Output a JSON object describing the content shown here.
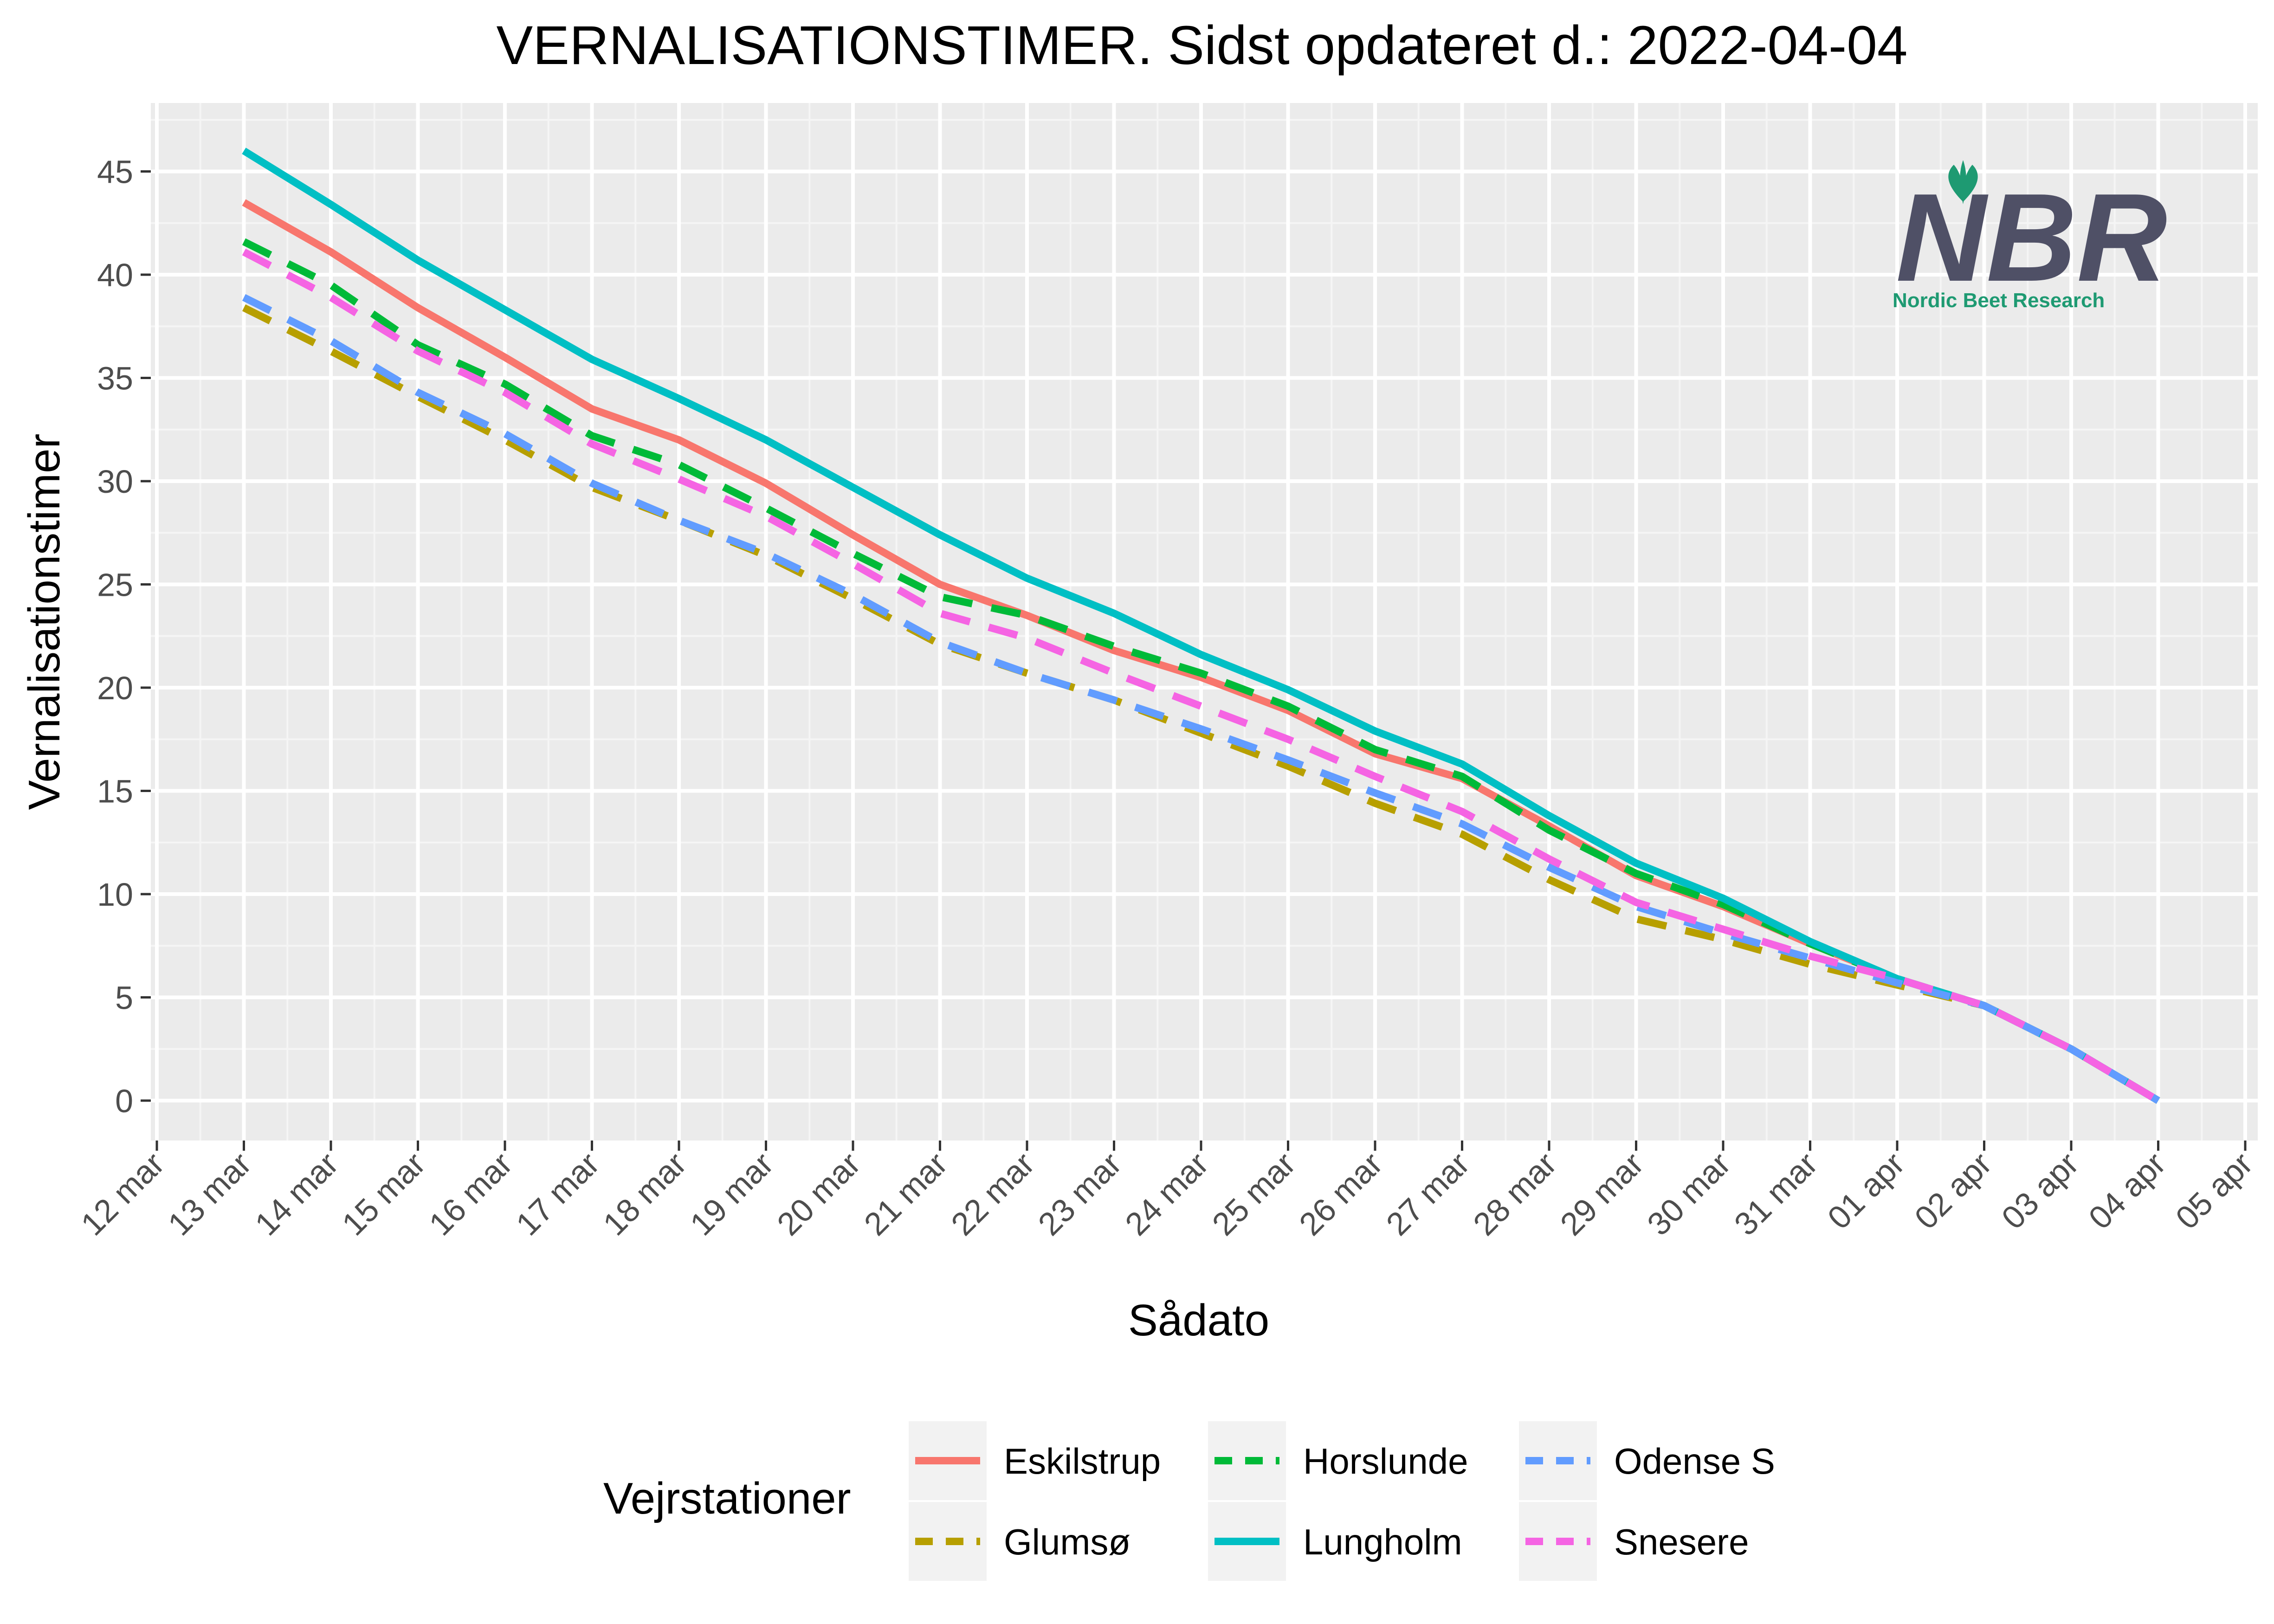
{
  "colors": {
    "panel": "#ebebeb",
    "grid_major": "#ffffff",
    "grid_minor": "#f5f5f5",
    "tick": "#333333",
    "legend_key_bg": "#f2f2f2"
  },
  "logo": {
    "text": "NBR",
    "subtitle": "Nordic Beet Research",
    "text_color": "#4f5066",
    "accent_color": "#1e9a72"
  },
  "chart_data": {
    "type": "line",
    "title": "VERNALISATIONSTIMER. Sidst opdateret d.:  2022-04-04",
    "xlabel": "Sådato",
    "ylabel": "Vernalisationstimer",
    "xlim": [
      0,
      24
    ],
    "ylim": [
      -2,
      48
    ],
    "x_ticks": [
      0,
      1,
      2,
      3,
      4,
      5,
      6,
      7,
      8,
      9,
      10,
      11,
      12,
      13,
      14,
      15,
      16,
      17,
      18,
      19,
      20,
      21,
      22,
      23,
      24
    ],
    "x_tick_labels": [
      "12 mar",
      "13 mar",
      "14 mar",
      "15 mar",
      "16 mar",
      "17 mar",
      "18 mar",
      "19 mar",
      "20 mar",
      "21 mar",
      "22 mar",
      "23 mar",
      "24 mar",
      "25 mar",
      "26 mar",
      "27 mar",
      "28 mar",
      "29 mar",
      "30 mar",
      "31 mar",
      "01 apr",
      "02 apr",
      "03 apr",
      "04 apr",
      "05 apr"
    ],
    "y_ticks": [
      0,
      5,
      10,
      15,
      20,
      25,
      30,
      35,
      40,
      45
    ],
    "y_tick_labels": [
      "0",
      "5",
      "10",
      "15",
      "20",
      "25",
      "30",
      "35",
      "40",
      "45"
    ],
    "x_values": [
      "13 mar",
      "14 mar",
      "15 mar",
      "16 mar",
      "17 mar",
      "18 mar",
      "19 mar",
      "20 mar",
      "21 mar",
      "22 mar",
      "23 mar",
      "24 mar",
      "25 mar",
      "26 mar",
      "27 mar",
      "28 mar",
      "29 mar",
      "30 mar",
      "31 mar",
      "01 apr",
      "02 apr",
      "03 apr",
      "04 apr"
    ],
    "grid": true,
    "legend": {
      "title": "Vejrstationer",
      "position": "bottom"
    },
    "series": [
      {
        "name": "Eskilstrup",
        "color": "#f8766d",
        "dash": "solid",
        "values": [
          43.5,
          41.1,
          38.4,
          36.0,
          33.5,
          32.0,
          29.9,
          27.4,
          25.0,
          23.5,
          21.8,
          20.5,
          18.9,
          16.8,
          15.6,
          13.3,
          10.9,
          9.4,
          7.6,
          5.9,
          4.6,
          2.5,
          0
        ]
      },
      {
        "name": "Glumsø",
        "color": "#b79f00",
        "dash": "dashed",
        "values": [
          38.4,
          36.3,
          34.1,
          32.0,
          29.7,
          28.1,
          26.4,
          24.3,
          22.1,
          20.7,
          19.4,
          17.8,
          16.2,
          14.4,
          12.9,
          10.7,
          8.8,
          7.8,
          6.6,
          5.6,
          4.6,
          2.5,
          0
        ]
      },
      {
        "name": "Horslunde",
        "color": "#00ba38",
        "dash": "dashed",
        "values": [
          41.6,
          39.5,
          36.6,
          34.7,
          32.2,
          30.8,
          28.7,
          26.5,
          24.4,
          23.5,
          22.0,
          20.7,
          19.1,
          17.0,
          15.7,
          13.1,
          11.0,
          9.5,
          7.6,
          5.9,
          4.6,
          2.5,
          0
        ]
      },
      {
        "name": "Lungholm",
        "color": "#00bfc4",
        "dash": "solid",
        "values": [
          46.0,
          43.4,
          40.7,
          38.3,
          35.9,
          34.0,
          32.0,
          29.7,
          27.4,
          25.3,
          23.6,
          21.6,
          19.9,
          17.9,
          16.3,
          13.8,
          11.5,
          9.8,
          7.7,
          5.9,
          4.6,
          2.5,
          0
        ]
      },
      {
        "name": "Odense S",
        "color": "#619cff",
        "dash": "dashed",
        "values": [
          38.9,
          36.8,
          34.3,
          32.3,
          29.9,
          28.1,
          26.5,
          24.5,
          22.2,
          20.7,
          19.4,
          18.0,
          16.5,
          14.9,
          13.4,
          11.3,
          9.4,
          8.1,
          6.9,
          5.7,
          4.6,
          2.5,
          0
        ]
      },
      {
        "name": "Snesere",
        "color": "#f564e3",
        "dash": "dashed",
        "values": [
          41.1,
          38.9,
          36.3,
          34.3,
          31.8,
          30.1,
          28.3,
          26.0,
          23.6,
          22.4,
          20.7,
          19.1,
          17.5,
          15.7,
          14.0,
          11.7,
          9.6,
          8.3,
          7.0,
          5.9,
          4.6,
          2.5,
          0
        ]
      }
    ]
  }
}
